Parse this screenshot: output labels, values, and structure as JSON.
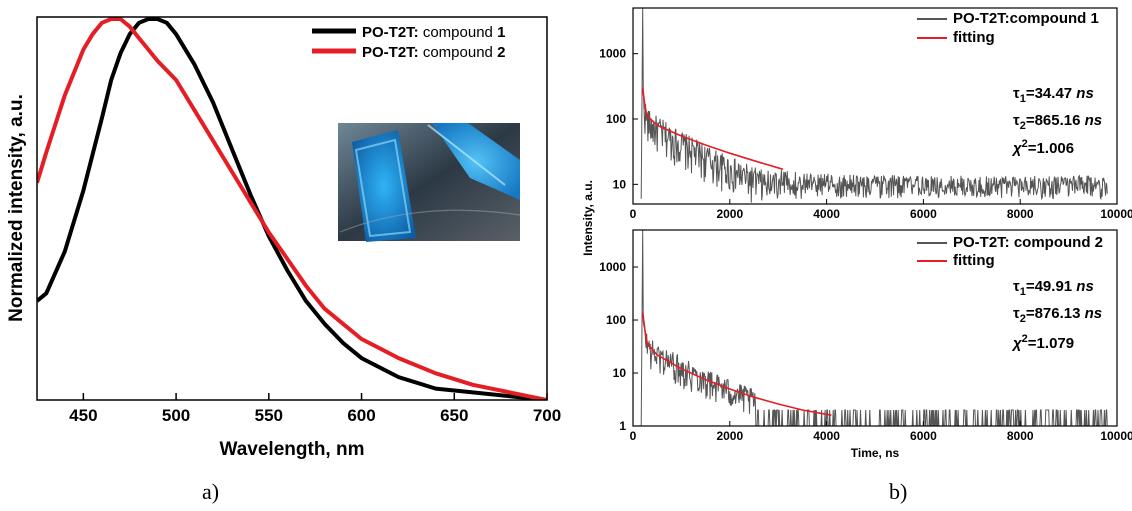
{
  "chart_data": [
    {
      "type": "line",
      "panel_label": "a)",
      "xlabel": "Wavelength, nm",
      "ylabel": "Normalized intensity, a.u.",
      "xlim": [
        425,
        700
      ],
      "ylim": [
        0,
        1.0
      ],
      "xticks": [
        450,
        500,
        550,
        600,
        650,
        700
      ],
      "legend_position": "top-right",
      "inset": "photo of blue-emitting samples",
      "series": [
        {
          "name_prefix": "PO-T2T:",
          "name_text": " compound ",
          "name_num": "1",
          "color": "#000000",
          "x": [
            425,
            430,
            440,
            450,
            460,
            465,
            470,
            475,
            480,
            485,
            490,
            495,
            500,
            510,
            520,
            530,
            540,
            550,
            560,
            570,
            580,
            590,
            600,
            620,
            640,
            660,
            680,
            700
          ],
          "y": [
            0.26,
            0.28,
            0.39,
            0.55,
            0.74,
            0.84,
            0.91,
            0.96,
            0.99,
            1.0,
            1.0,
            0.99,
            0.96,
            0.88,
            0.78,
            0.66,
            0.54,
            0.43,
            0.34,
            0.26,
            0.2,
            0.15,
            0.11,
            0.06,
            0.03,
            0.02,
            0.01,
            0.0
          ]
        },
        {
          "name_prefix": "PO-T2T:",
          "name_text": " compound ",
          "name_num": "2",
          "color": "#e51e25",
          "x": [
            425,
            430,
            440,
            450,
            455,
            460,
            465,
            470,
            475,
            480,
            485,
            490,
            500,
            510,
            520,
            530,
            540,
            550,
            560,
            570,
            580,
            590,
            600,
            620,
            640,
            660,
            680,
            700
          ],
          "y": [
            0.57,
            0.65,
            0.8,
            0.92,
            0.96,
            0.99,
            1.0,
            1.0,
            0.98,
            0.95,
            0.92,
            0.89,
            0.84,
            0.76,
            0.68,
            0.6,
            0.52,
            0.44,
            0.37,
            0.3,
            0.24,
            0.2,
            0.16,
            0.11,
            0.07,
            0.04,
            0.02,
            0.0
          ]
        }
      ]
    },
    {
      "type": "line",
      "panel_label": "b)",
      "xlabel": "Time, ns",
      "ylabel": "Intensity, a.u.",
      "y_scale": "log",
      "subplots": [
        {
          "xlim": [
            0,
            10000
          ],
          "ylim": [
            5,
            5000
          ],
          "xticks": [
            0,
            2000,
            4000,
            6000,
            8000,
            10000
          ],
          "yticks": [
            10,
            100,
            1000
          ],
          "decay_name": "PO-T2T:compound 1",
          "fit_name": "fitting",
          "peak_time": 200,
          "peak_value": 5000,
          "fit_end_time": 3100,
          "tau1_value": "=34.47",
          "tau2_value": "=865.16",
          "chi_value": "=1.006",
          "unit": "ns",
          "fit": [
            [
              200,
              300
            ],
            [
              250,
              150
            ],
            [
              300,
              110
            ],
            [
              500,
              80
            ],
            [
              1000,
              55
            ],
            [
              1500,
              40
            ],
            [
              2000,
              30
            ],
            [
              2500,
              23
            ],
            [
              3100,
              17
            ]
          ]
        },
        {
          "xlim": [
            0,
            10000
          ],
          "ylim": [
            1,
            5000
          ],
          "xticks": [
            0,
            2000,
            4000,
            6000,
            8000,
            10000
          ],
          "yticks": [
            1,
            10,
            100,
            1000
          ],
          "decay_name": "PO-T2T: compound 2",
          "fit_name": "fitting",
          "peak_time": 200,
          "peak_value": 5000,
          "fit_end_time": 4100,
          "tau1_value": "=49.91",
          "tau2_value": "=876.13",
          "chi_value": "=1.079",
          "unit": "ns",
          "fit": [
            [
              200,
              140
            ],
            [
              250,
              60
            ],
            [
              300,
              35
            ],
            [
              500,
              22
            ],
            [
              1000,
              12
            ],
            [
              1500,
              7.5
            ],
            [
              2000,
              5
            ],
            [
              2500,
              3.5
            ],
            [
              3000,
              2.6
            ],
            [
              3500,
              2
            ],
            [
              4100,
              1.6
            ]
          ]
        }
      ]
    }
  ]
}
